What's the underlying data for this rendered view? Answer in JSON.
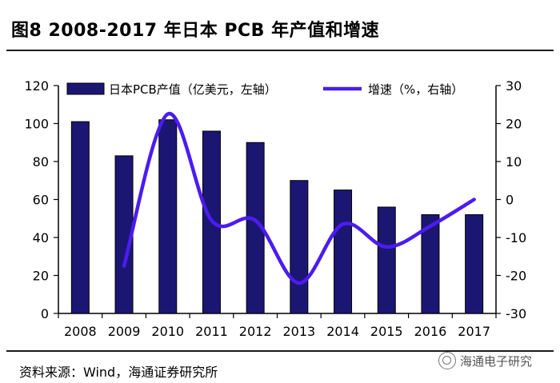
{
  "title": "图8  2008-2017 年日本 PCB 年产值和增速",
  "source": "资料来源：Wind，海通证券研究所",
  "watermark": "海通电子研究",
  "colors": {
    "bar": "#1c1673",
    "line": "#4b1cf0",
    "axis": "#000000"
  },
  "chart_data": {
    "type": "bar",
    "categories": [
      "2008",
      "2009",
      "2010",
      "2011",
      "2012",
      "2013",
      "2014",
      "2015",
      "2016",
      "2017"
    ],
    "series": [
      {
        "name": "日本PCB产值（亿美元，左轴）",
        "type": "bar",
        "axis": "left",
        "values": [
          101,
          83,
          102,
          96,
          90,
          70,
          65,
          56,
          52,
          52
        ]
      },
      {
        "name": "增速（%，右轴）",
        "type": "line",
        "axis": "right",
        "values": [
          null,
          -17.5,
          22.5,
          -5.5,
          -5.5,
          -22,
          -6.5,
          -12.5,
          -7,
          0
        ]
      }
    ],
    "y_left": {
      "min": 0,
      "max": 120,
      "ticks": [
        0,
        20,
        40,
        60,
        80,
        100,
        120
      ]
    },
    "y_right": {
      "min": -30,
      "max": 30,
      "ticks": [
        -30,
        -20,
        -10,
        0,
        10,
        20,
        30
      ]
    },
    "legend": {
      "position": "top"
    },
    "grid": false
  }
}
